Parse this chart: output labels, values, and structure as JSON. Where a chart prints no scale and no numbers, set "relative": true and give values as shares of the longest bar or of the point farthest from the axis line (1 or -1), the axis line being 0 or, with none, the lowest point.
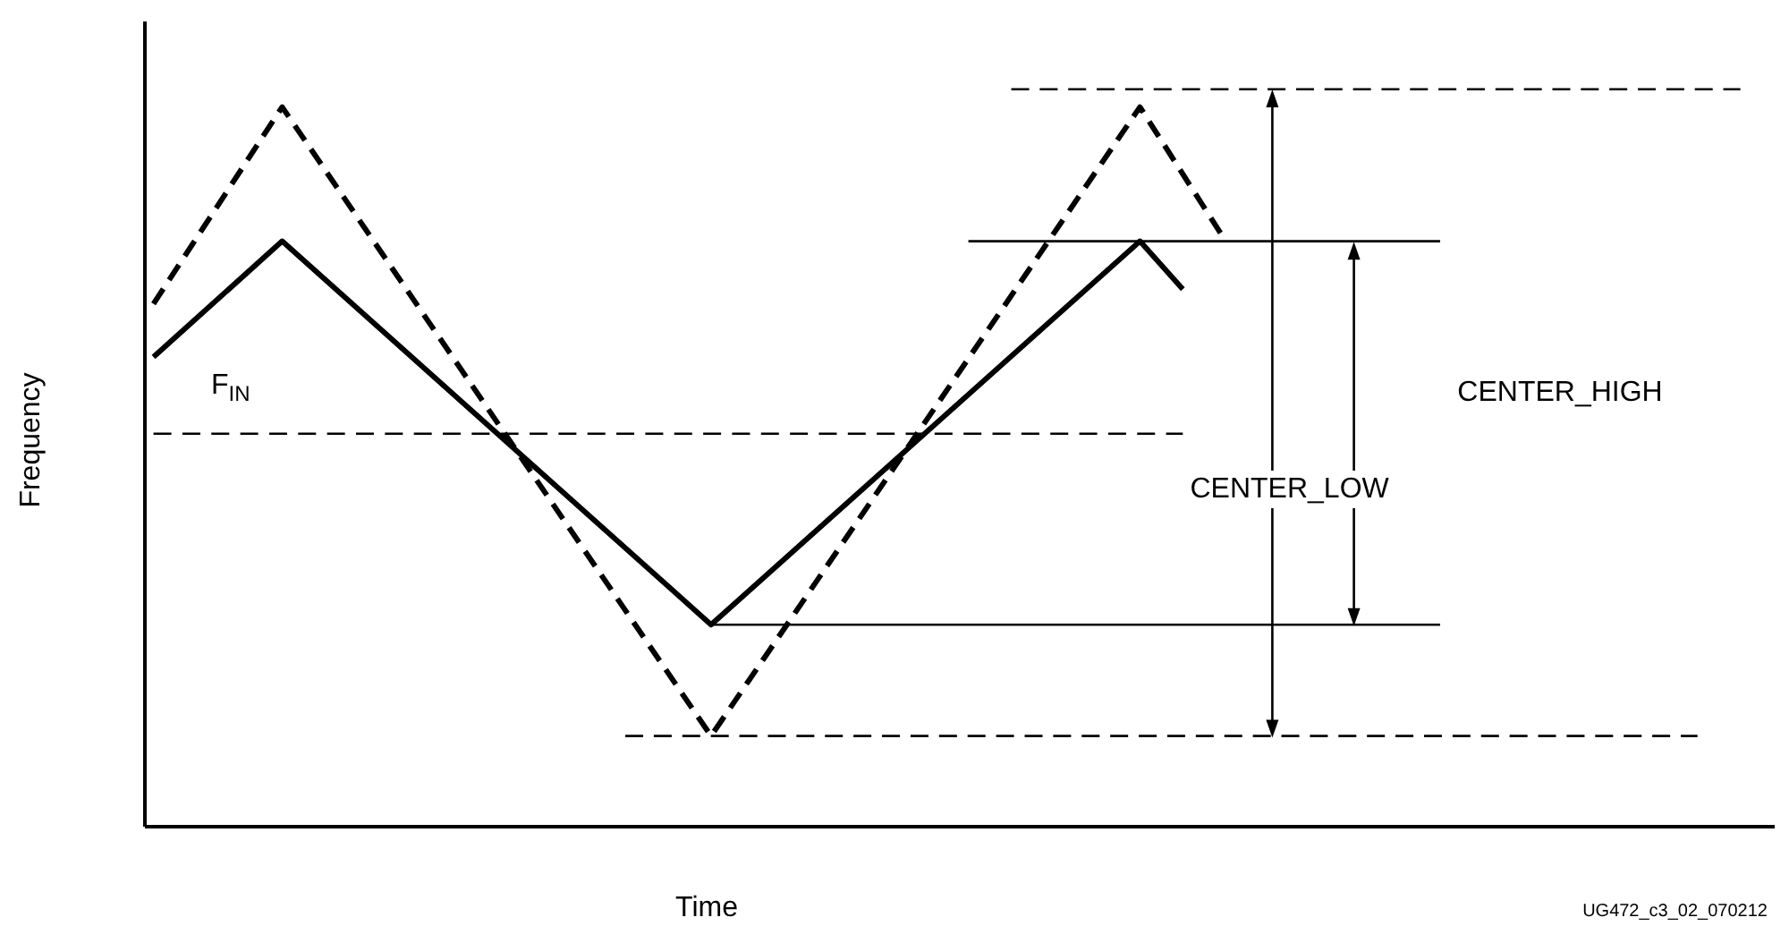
{
  "chart_data": {
    "type": "line",
    "relative": true,
    "xlabel": "Time",
    "ylabel": "Frequency",
    "marker": "none",
    "categories": [
      null,
      null,
      null,
      null,
      null,
      null,
      null,
      null,
      null,
      null,
      null,
      null,
      null,
      null,
      null,
      null,
      null,
      null,
      null,
      null,
      null,
      null,
      null,
      null,
      null,
      null,
      null,
      null,
      null,
      null,
      null,
      null,
      null,
      null,
      null,
      null,
      null,
      null
    ],
    "series": [
      {
        "color": "#000000",
        "line_style": "solid",
        "values": [
          0.637,
          null,
          null,
          0.794,
          null,
          null,
          null,
          null,
          null,
          null,
          null,
          null,
          null,
          0.274,
          null,
          null,
          null,
          null,
          null,
          null,
          null,
          null,
          null,
          0.794,
          0.729,
          null,
          null,
          null,
          null,
          null,
          null,
          null,
          null,
          null,
          null,
          null,
          null,
          null
        ]
      },
      {
        "color": "#000000",
        "line_style": "dashed",
        "values": [
          0.709,
          null,
          null,
          0.976,
          null,
          null,
          null,
          null,
          null,
          null,
          null,
          null,
          null,
          0.123,
          null,
          null,
          null,
          null,
          null,
          null,
          null,
          null,
          null,
          0.976,
          null,
          0.794,
          null,
          null,
          null,
          null,
          null,
          null,
          null,
          null,
          null,
          null,
          null,
          null
        ]
      },
      {
        "color": "#000000",
        "line_style": "dashed",
        "values": [
          0.533,
          null,
          null,
          null,
          null,
          null,
          null,
          null,
          null,
          null,
          null,
          null,
          null,
          null,
          null,
          null,
          null,
          null,
          null,
          null,
          null,
          null,
          null,
          null,
          0.533,
          null,
          null,
          null,
          null,
          null,
          null,
          null,
          null,
          null,
          null,
          null,
          null,
          null
        ]
      },
      {
        "color": "#000000",
        "line_style": "solid",
        "values": [
          null,
          null,
          null,
          null,
          null,
          null,
          null,
          null,
          null,
          null,
          null,
          null,
          null,
          null,
          null,
          null,
          null,
          null,
          null,
          0.794,
          null,
          null,
          null,
          null,
          null,
          null,
          null,
          null,
          null,
          null,
          0.794,
          null,
          null,
          null,
          null,
          null,
          null,
          null
        ]
      },
      {
        "color": "#000000",
        "line_style": "solid",
        "values": [
          null,
          null,
          null,
          null,
          null,
          null,
          null,
          null,
          null,
          null,
          null,
          null,
          null,
          0.274,
          null,
          null,
          null,
          null,
          null,
          null,
          null,
          null,
          null,
          null,
          null,
          null,
          null,
          null,
          null,
          null,
          0.274,
          null,
          null,
          null,
          null,
          null,
          null,
          null
        ]
      },
      {
        "color": "#000000",
        "line_style": "dashed",
        "values": [
          null,
          null,
          null,
          null,
          null,
          null,
          null,
          null,
          null,
          null,
          null,
          null,
          null,
          null,
          null,
          null,
          null,
          null,
          null,
          null,
          1,
          null,
          null,
          null,
          null,
          null,
          null,
          null,
          null,
          null,
          null,
          null,
          null,
          null,
          null,
          null,
          null,
          1
        ]
      },
      {
        "color": "#000000",
        "line_style": "dashed",
        "values": [
          null,
          null,
          null,
          null,
          null,
          null,
          null,
          null,
          null,
          null,
          null,
          0.123,
          null,
          null,
          null,
          null,
          null,
          null,
          null,
          null,
          null,
          null,
          null,
          null,
          null,
          null,
          null,
          null,
          null,
          null,
          null,
          null,
          null,
          null,
          null,
          null,
          0.123,
          null
        ]
      }
    ],
    "annotations": [
      "F$_{IN}$",
      "CENTER_LOW",
      "CENTER_HIGH",
      "UG472_c3_02_070212"
    ]
  }
}
